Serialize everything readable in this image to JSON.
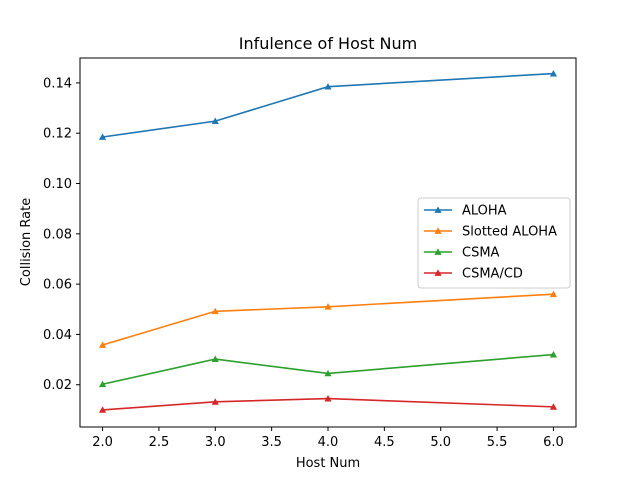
{
  "chart_data": {
    "type": "line",
    "title": "Infulence of Host Num",
    "xlabel": "Host Num",
    "ylabel": "Collision Rate",
    "xlim": [
      1.8,
      6.2
    ],
    "ylim": [
      0.0032,
      0.1499
    ],
    "xticks": [
      2.0,
      2.5,
      3.0,
      3.5,
      4.0,
      4.5,
      5.0,
      5.5,
      6.0
    ],
    "xtick_labels": [
      "2.0",
      "2.5",
      "3.0",
      "3.5",
      "4.0",
      "4.5",
      "5.0",
      "5.5",
      "6.0"
    ],
    "yticks": [
      0.02,
      0.04,
      0.06,
      0.08,
      0.1,
      0.12,
      0.14
    ],
    "ytick_labels": [
      "0.02",
      "0.04",
      "0.06",
      "0.08",
      "0.10",
      "0.12",
      "0.14"
    ],
    "grid": false,
    "legend_position": "center-right",
    "x": [
      2,
      3,
      4,
      6
    ],
    "series": [
      {
        "name": "ALOHA",
        "color": "#1f77b4",
        "marker": "triangle-up",
        "values": [
          0.1185,
          0.1248,
          0.1385,
          0.1437
        ]
      },
      {
        "name": "Slotted ALOHA",
        "color": "#ff7f0e",
        "marker": "triangle-up",
        "values": [
          0.0358,
          0.0492,
          0.051,
          0.056
        ]
      },
      {
        "name": "CSMA",
        "color": "#2ca02c",
        "marker": "triangle-up",
        "values": [
          0.0202,
          0.0302,
          0.0245,
          0.032
        ]
      },
      {
        "name": "CSMA/CD",
        "color": "#d62728",
        "marker": "triangle-up",
        "values": [
          0.01,
          0.0132,
          0.0145,
          0.0112
        ]
      }
    ]
  }
}
